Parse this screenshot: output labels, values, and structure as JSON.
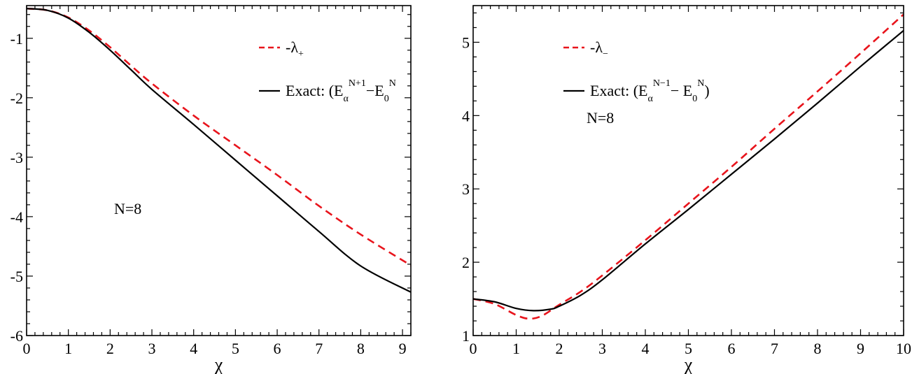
{
  "chart_data": [
    {
      "type": "line",
      "panel": "left",
      "xlabel": "χ",
      "ylabel": "",
      "xlim": [
        0,
        9.2
      ],
      "ylim": [
        -6,
        -0.45
      ],
      "x_ticks": [
        0,
        1,
        2,
        3,
        4,
        5,
        6,
        7,
        8,
        9
      ],
      "x_tick_labels": [
        "0",
        "1",
        "2",
        "3",
        "4",
        "5",
        "6",
        "7",
        "8",
        "9"
      ],
      "y_ticks": [
        -6,
        -5,
        -4,
        -3,
        -2,
        -1
      ],
      "y_tick_labels": [
        "-6",
        "-5",
        "-4",
        "-3",
        "-2",
        "-1"
      ],
      "annotation": "N=8",
      "legend": [
        {
          "label": "-λ₊",
          "label_main": "-λ",
          "label_sub": "+",
          "color": "#e8141c",
          "dash": "dashed"
        },
        {
          "label": "Exact: (E_α^{N+1} − E_0^N)",
          "label_main": "Exact: (E",
          "sub1": "α",
          "sup1": "N+1",
          "mid": "−E",
          "sub2": "0",
          "sup2": "N",
          "color": "#000000",
          "dash": "solid"
        }
      ],
      "series": [
        {
          "name": "-λ₊",
          "color": "#e8141c",
          "dash": "dashed",
          "x": [
            0,
            0.5,
            1.0,
            1.5,
            2.0,
            2.5,
            3.0,
            4.0,
            5.0,
            6.0,
            7.0,
            8.0,
            9.2
          ],
          "y": [
            -0.5,
            -0.53,
            -0.65,
            -0.87,
            -1.15,
            -1.46,
            -1.76,
            -2.3,
            -2.8,
            -3.3,
            -3.82,
            -4.3,
            -4.82
          ]
        },
        {
          "name": "Exact",
          "color": "#000000",
          "dash": "solid",
          "x": [
            0,
            0.5,
            1.0,
            1.5,
            2.0,
            2.5,
            3.0,
            4.0,
            5.0,
            6.0,
            7.0,
            8.0,
            9.2
          ],
          "y": [
            -0.5,
            -0.53,
            -0.66,
            -0.9,
            -1.2,
            -1.53,
            -1.86,
            -2.45,
            -3.05,
            -3.65,
            -4.25,
            -4.83,
            -5.27
          ]
        }
      ]
    },
    {
      "type": "line",
      "panel": "right",
      "xlabel": "χ",
      "ylabel": "",
      "xlim": [
        0,
        10
      ],
      "ylim": [
        1,
        5.5
      ],
      "x_ticks": [
        0,
        1,
        2,
        3,
        4,
        5,
        6,
        7,
        8,
        9,
        10
      ],
      "x_tick_labels": [
        "0",
        "1",
        "2",
        "3",
        "4",
        "5",
        "6",
        "7",
        "8",
        "9",
        "10"
      ],
      "y_ticks": [
        1,
        2,
        3,
        4,
        5
      ],
      "y_tick_labels": [
        "1",
        "2",
        "3",
        "4",
        "5"
      ],
      "annotation": "N=8",
      "legend": [
        {
          "label": "-λ₋",
          "label_main": "-λ",
          "label_sub": "−",
          "color": "#e8141c",
          "dash": "dashed"
        },
        {
          "label": "Exact: (E_α^{N−1} − E_0^N)",
          "label_main": "Exact: (E",
          "sub1": "α",
          "sup1": "N−1",
          "mid": "− E",
          "sub2": "0",
          "sup2": "N",
          "close": ")",
          "color": "#000000",
          "dash": "solid"
        }
      ],
      "series": [
        {
          "name": "-λ₋",
          "color": "#e8141c",
          "dash": "dashed",
          "x": [
            0,
            0.5,
            1.0,
            1.3,
            1.6,
            2.0,
            2.5,
            3.0,
            4.0,
            5.0,
            6.0,
            7.0,
            8.0,
            9.0,
            10.0
          ],
          "y": [
            1.5,
            1.43,
            1.28,
            1.23,
            1.27,
            1.42,
            1.6,
            1.82,
            2.3,
            2.8,
            3.3,
            3.82,
            4.33,
            4.85,
            5.38
          ]
        },
        {
          "name": "Exact",
          "color": "#000000",
          "dash": "solid",
          "x": [
            0,
            0.5,
            1.0,
            1.4,
            1.8,
            2.0,
            2.5,
            3.0,
            4.0,
            5.0,
            6.0,
            7.0,
            8.0,
            9.0,
            10.0
          ],
          "y": [
            1.5,
            1.46,
            1.37,
            1.34,
            1.36,
            1.4,
            1.55,
            1.76,
            2.25,
            2.72,
            3.2,
            3.68,
            4.17,
            4.67,
            5.16
          ]
        }
      ]
    }
  ]
}
